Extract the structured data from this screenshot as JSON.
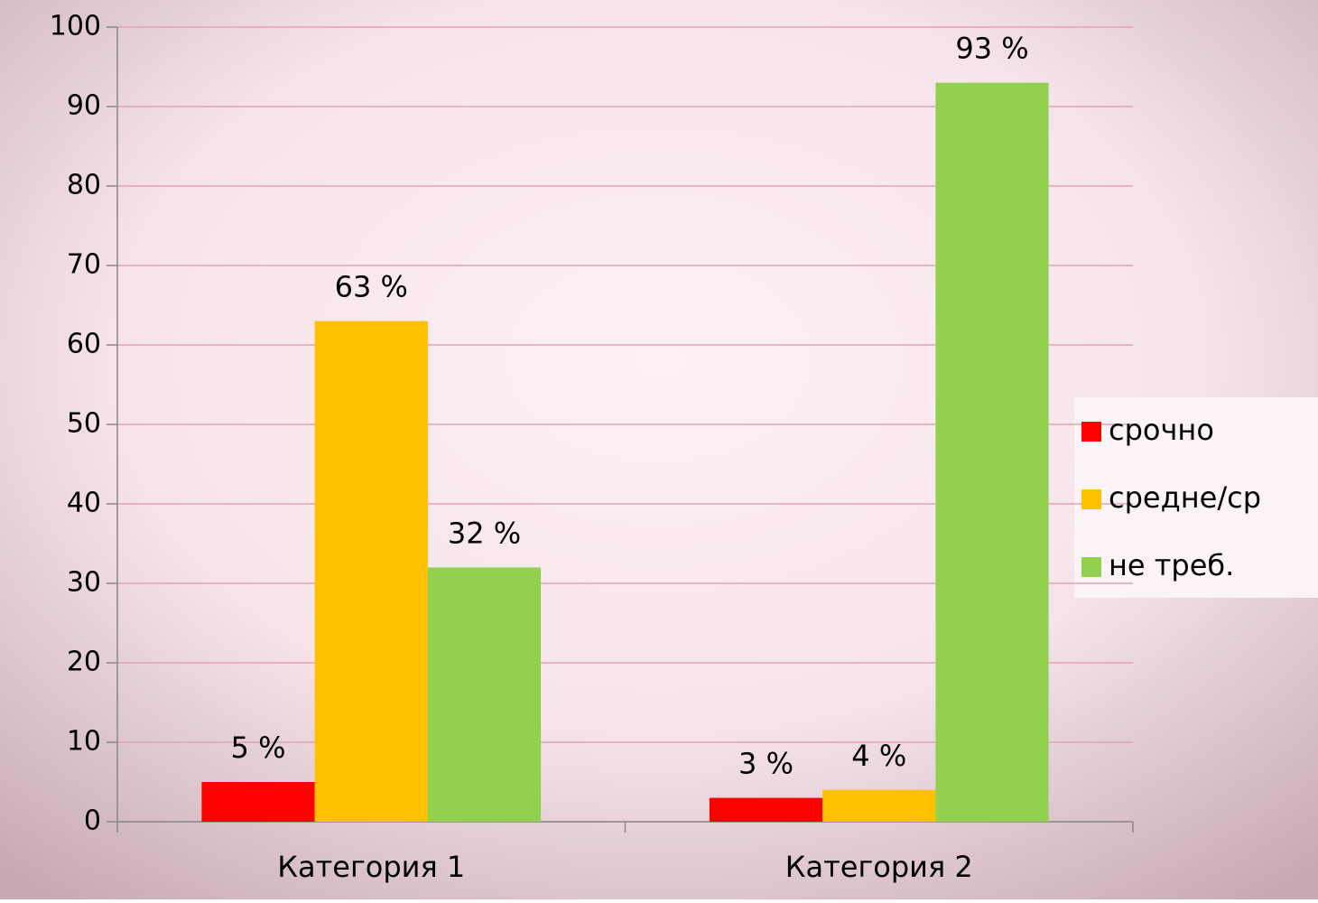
{
  "chart_data": {
    "type": "bar",
    "categories": [
      "Категория 1",
      "Категория 2"
    ],
    "series": [
      {
        "name": "срочно",
        "color": "#ff0000",
        "values": [
          5,
          3
        ],
        "value_labels": [
          "5 %",
          "3 %"
        ]
      },
      {
        "name": "средне/ср",
        "color": "#ffc000",
        "values": [
          63,
          4
        ],
        "value_labels": [
          "63 %",
          "4 %"
        ]
      },
      {
        "name": "не треб.",
        "color": "#92d050",
        "values": [
          32,
          93
        ],
        "value_labels": [
          "32 %",
          "93 %"
        ]
      }
    ],
    "ylim": [
      0,
      100
    ],
    "yticks": [
      0,
      10,
      20,
      30,
      40,
      50,
      60,
      70,
      80,
      90,
      100
    ],
    "grid": true,
    "legend": "right"
  }
}
